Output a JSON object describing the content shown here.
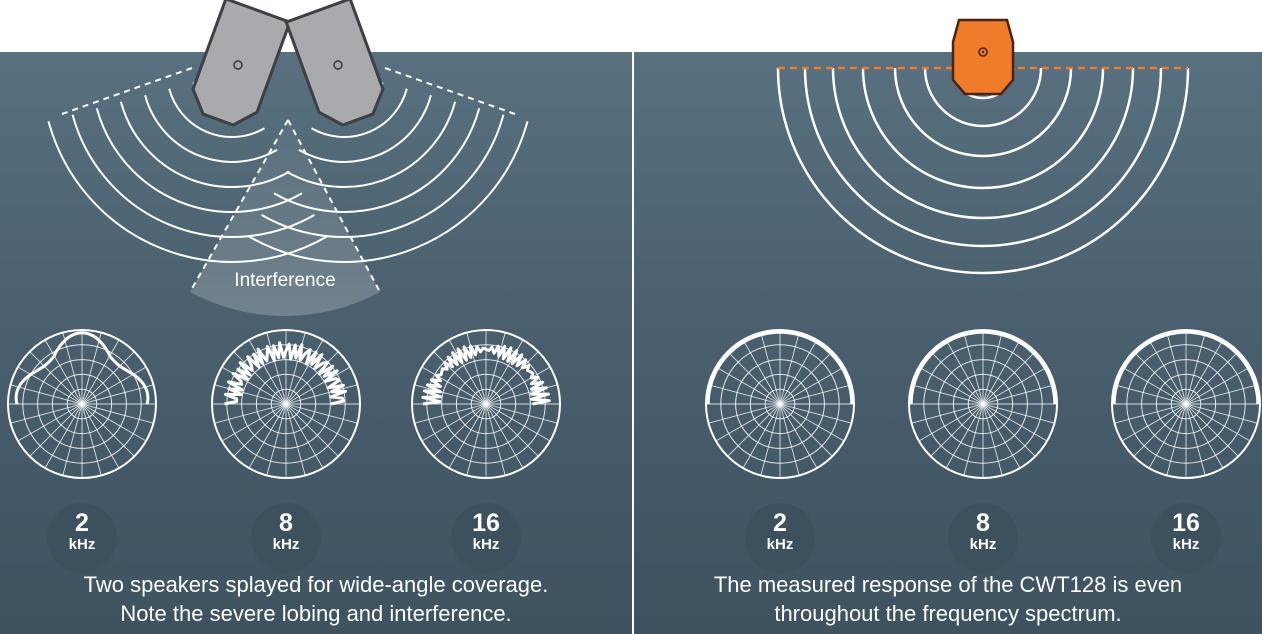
{
  "left_panel": {
    "interference_label": "Interference",
    "freq_unit": "kHz",
    "frequencies": [
      "2",
      "8",
      "16"
    ],
    "caption_line1": "Two speakers splayed for wide-angle coverage.",
    "caption_line2": "Note the severe lobing and interference."
  },
  "right_panel": {
    "freq_unit": "kHz",
    "frequencies": [
      "2",
      "8",
      "16"
    ],
    "caption_line1": "The measured response of the CWT128 is even",
    "caption_line2": "throughout the frequency spectrum."
  },
  "colors": {
    "panel": "#4d6472",
    "speaker_gray": "#a9aaad",
    "speaker_orange": "#f07b2b",
    "wave": "#ffffff",
    "badge": "#3d505d"
  },
  "icons": [
    "gray-speaker-icon",
    "orange-speaker-icon",
    "polar-plot-icon"
  ]
}
